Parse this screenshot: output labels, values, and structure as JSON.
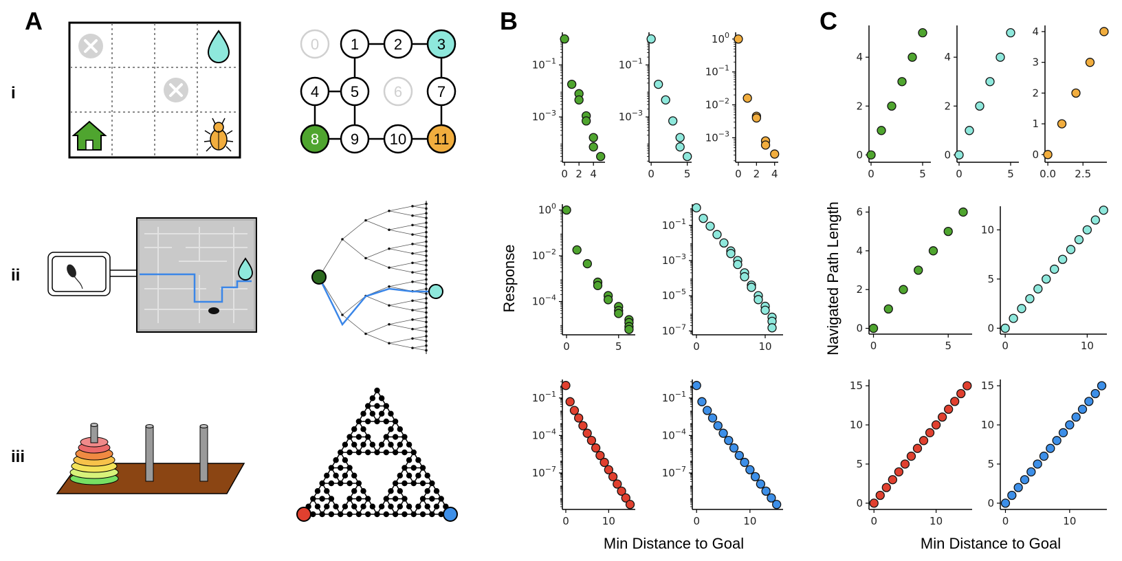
{
  "panels": {
    "A": "A",
    "B": "B",
    "C": "C"
  },
  "rows": {
    "i": "i",
    "ii": "ii",
    "iii": "iii"
  },
  "graph_nodes": [
    "0",
    "1",
    "2",
    "3",
    "4",
    "5",
    "6",
    "7",
    "8",
    "9",
    "10",
    "11"
  ],
  "colors": {
    "green": "#4fa52f",
    "cyan": "#8ee8dc",
    "orange": "#f1ad3e",
    "red": "#e0402f",
    "blue": "#3d8fe8",
    "dark_green": "#2c6a1f",
    "path_blue": "#3a86e8"
  },
  "icons": [
    "blocked-icon",
    "water-drop-icon",
    "home-icon",
    "beetle-icon",
    "mouse-icon"
  ],
  "axis_labels": {
    "B_ylabel": "Response",
    "B_xlabel": "Min Distance to Goal",
    "C_ylabel": "Navigated Path Length",
    "C_xlabel": "Min Distance to Goal"
  },
  "chart_data": [
    {
      "panel": "B",
      "row": "i",
      "col": 0,
      "type": "scatter",
      "yscale": "log",
      "color": "green",
      "x": [
        0,
        1,
        2,
        2,
        3,
        3,
        4,
        4,
        5
      ],
      "y": [
        1,
        0.018,
        0.0078,
        0.0045,
        0.0011,
        0.0007,
        0.00016,
        7e-05,
        3e-05
      ],
      "xlim": [
        -0.3,
        5.6
      ],
      "ylim": [
        1.8e-05,
        1.8
      ],
      "xticks": [
        0,
        2,
        4
      ],
      "yticks": [
        0.1,
        0.001
      ],
      "ytick_labels": [
        "10^-1",
        "10^-3"
      ]
    },
    {
      "panel": "B",
      "row": "i",
      "col": 1,
      "type": "scatter",
      "yscale": "log",
      "color": "cyan",
      "x": [
        0,
        1,
        2,
        3,
        4,
        4,
        5
      ],
      "y": [
        1,
        0.018,
        0.0045,
        0.0007,
        0.00016,
        7e-05,
        3e-05
      ],
      "xlim": [
        -0.3,
        5.6
      ],
      "ylim": [
        1.8e-05,
        1.8
      ],
      "xticks": [
        0,
        5
      ],
      "yticks": [
        0.1,
        0.001
      ],
      "ytick_labels": [
        "10^-1",
        "10^-3"
      ]
    },
    {
      "panel": "B",
      "row": "i",
      "col": 2,
      "type": "scatter",
      "yscale": "log",
      "color": "orange",
      "x": [
        0,
        1,
        2,
        2,
        3,
        3,
        4
      ],
      "y": [
        1,
        0.016,
        0.0045,
        0.004,
        0.0008,
        0.0006,
        0.00032
      ],
      "xlim": [
        -0.3,
        4.4
      ],
      "ylim": [
        0.00018,
        1.6
      ],
      "xticks": [
        0,
        2,
        4
      ],
      "yticks": [
        1,
        0.1,
        0.01,
        0.001
      ],
      "ytick_labels": [
        "10^0",
        "10^-1",
        "10^-2",
        "10^-3"
      ]
    },
    {
      "panel": "B",
      "row": "ii",
      "col": 0,
      "type": "scatter",
      "yscale": "log",
      "color": "green",
      "x": [
        0,
        1,
        2,
        3,
        3,
        4,
        4,
        5,
        5,
        5,
        6,
        6,
        6,
        6
      ],
      "y": [
        1,
        0.018,
        0.0045,
        0.0007,
        0.0005,
        0.00018,
        0.00012,
        6e-05,
        4e-05,
        3e-05,
        1.6e-05,
        1.2e-05,
        8e-06,
        6e-06
      ],
      "xlim": [
        -0.4,
        6.6
      ],
      "ylim": [
        3.5e-06,
        1.8
      ],
      "xticks": [
        0,
        5
      ],
      "yticks": [
        1,
        0.01,
        0.0001
      ],
      "ytick_labels": [
        "10^0",
        "10^-2",
        "10^-4"
      ]
    },
    {
      "panel": "B",
      "row": "ii",
      "col": 1,
      "type": "scatter",
      "yscale": "log",
      "color": "cyan",
      "x": [
        0,
        1,
        2,
        3,
        4,
        5,
        5,
        6,
        6,
        7,
        7,
        8,
        8,
        9,
        9,
        10,
        10,
        11,
        11,
        11
      ],
      "y": [
        1,
        0.25,
        0.09,
        0.03,
        0.01,
        0.0035,
        0.0025,
        0.001,
        0.0006,
        0.0002,
        0.00012,
        4e-05,
        3e-05,
        1e-05,
        6e-06,
        2.5e-06,
        1.5e-06,
        6e-07,
        3.5e-07,
        1.5e-07
      ],
      "xlim": [
        -0.6,
        12.6
      ],
      "ylim": [
        6e-08,
        1.6
      ],
      "xticks": [
        0,
        10
      ],
      "yticks": [
        0.1,
        0.001,
        1e-05,
        1e-07
      ],
      "ytick_labels": [
        "10^-1",
        "10^-3",
        "10^-5",
        "10^-7"
      ]
    },
    {
      "panel": "B",
      "row": "iii",
      "col": 0,
      "type": "scatter",
      "yscale": "log",
      "color": "red",
      "x": [
        0,
        1,
        2,
        3,
        4,
        5,
        6,
        7,
        8,
        9,
        10,
        11,
        12,
        13,
        14,
        15
      ],
      "y": [
        1,
        0.05,
        0.01,
        0.0025,
        0.0006,
        0.00015,
        4e-05,
        1e-05,
        2.5e-06,
        7e-07,
        1.8e-07,
        5e-08,
        1.3e-08,
        3.5e-09,
        1e-09,
        3e-10
      ],
      "xlim": [
        -0.8,
        16.2
      ],
      "ylim": [
        1.2e-10,
        3
      ],
      "xticks": [
        0,
        10
      ],
      "yticks": [
        0.1,
        0.0001,
        1e-07
      ],
      "ytick_labels": [
        "10^-1",
        "10^-4",
        "10^-7"
      ]
    },
    {
      "panel": "B",
      "row": "iii",
      "col": 1,
      "type": "scatter",
      "yscale": "log",
      "color": "blue",
      "x": [
        0,
        1,
        2,
        3,
        4,
        5,
        6,
        7,
        8,
        9,
        10,
        11,
        12,
        13,
        14,
        15
      ],
      "y": [
        1,
        0.05,
        0.01,
        0.0025,
        0.0006,
        0.00015,
        4e-05,
        1e-05,
        2.5e-06,
        7e-07,
        1.8e-07,
        5e-08,
        1.3e-08,
        3.5e-09,
        1e-09,
        3e-10
      ],
      "xlim": [
        -0.8,
        16.2
      ],
      "ylim": [
        1.2e-10,
        3
      ],
      "xticks": [
        0,
        10
      ],
      "yticks": [
        0.1,
        0.0001,
        1e-07
      ],
      "ytick_labels": [
        "10^-1",
        "10^-4",
        "10^-7"
      ]
    },
    {
      "panel": "C",
      "row": "i",
      "col": 0,
      "type": "scatter",
      "yscale": "linear",
      "color": "green",
      "x": [
        0,
        1,
        2,
        3,
        4,
        5
      ],
      "y": [
        0,
        1,
        2,
        3,
        4,
        5
      ],
      "xlim": [
        -0.2,
        5.8
      ],
      "ylim": [
        -0.3,
        5.3
      ],
      "xticks": [
        0,
        5
      ],
      "yticks": [
        0,
        2,
        4
      ]
    },
    {
      "panel": "C",
      "row": "i",
      "col": 1,
      "type": "scatter",
      "yscale": "linear",
      "color": "cyan",
      "x": [
        0,
        1,
        2,
        3,
        4,
        5
      ],
      "y": [
        0,
        1,
        2,
        3,
        4,
        5
      ],
      "xlim": [
        -0.2,
        5.8
      ],
      "ylim": [
        -0.3,
        5.3
      ],
      "xticks": [
        0,
        5
      ],
      "yticks": [
        0,
        2,
        4
      ]
    },
    {
      "panel": "C",
      "row": "i",
      "col": 2,
      "type": "scatter",
      "yscale": "linear",
      "color": "orange",
      "x": [
        0,
        1,
        2,
        3,
        4
      ],
      "y": [
        0,
        1,
        2,
        3,
        4
      ],
      "xlim": [
        -0.2,
        4.2
      ],
      "ylim": [
        -0.25,
        4.2
      ],
      "xticks": [
        0,
        2.5
      ],
      "xtick_labels": [
        "0.0",
        "2.5"
      ],
      "yticks": [
        0,
        1,
        2,
        3,
        4
      ]
    },
    {
      "panel": "C",
      "row": "ii",
      "col": 0,
      "type": "scatter",
      "yscale": "linear",
      "color": "green",
      "x": [
        0,
        1,
        2,
        3,
        4,
        5,
        6
      ],
      "y": [
        0,
        1,
        2,
        3,
        4,
        5,
        6
      ],
      "xlim": [
        -0.3,
        6.6
      ],
      "ylim": [
        -0.3,
        6.3
      ],
      "xticks": [
        0,
        5
      ],
      "yticks": [
        0,
        2,
        4,
        6
      ]
    },
    {
      "panel": "C",
      "row": "ii",
      "col": 1,
      "type": "scatter",
      "yscale": "linear",
      "color": "cyan",
      "x": [
        0,
        1,
        2,
        3,
        4,
        5,
        6,
        7,
        8,
        9,
        10,
        11,
        12
      ],
      "y": [
        0,
        1,
        2,
        3,
        4,
        5,
        6,
        7,
        8,
        9,
        10,
        11,
        12
      ],
      "xlim": [
        -0.6,
        12.4
      ],
      "ylim": [
        -0.6,
        12.4
      ],
      "xticks": [
        0,
        10
      ],
      "yticks": [
        0,
        5,
        10
      ]
    },
    {
      "panel": "C",
      "row": "iii",
      "col": 0,
      "type": "scatter",
      "yscale": "linear",
      "color": "red",
      "x": [
        0,
        1,
        2,
        3,
        4,
        5,
        6,
        7,
        8,
        9,
        10,
        11,
        12,
        13,
        14,
        15
      ],
      "y": [
        0,
        1,
        2,
        3,
        4,
        5,
        6,
        7,
        8,
        9,
        10,
        11,
        12,
        13,
        14,
        15
      ],
      "xlim": [
        -0.8,
        15.8
      ],
      "ylim": [
        -0.8,
        15.8
      ],
      "xticks": [
        0,
        10
      ],
      "yticks": [
        0,
        5,
        10,
        15
      ]
    },
    {
      "panel": "C",
      "row": "iii",
      "col": 1,
      "type": "scatter",
      "yscale": "linear",
      "color": "blue",
      "x": [
        0,
        1,
        2,
        3,
        4,
        5,
        6,
        7,
        8,
        9,
        10,
        11,
        12,
        13,
        14,
        15
      ],
      "y": [
        0,
        1,
        2,
        3,
        4,
        5,
        6,
        7,
        8,
        9,
        10,
        11,
        12,
        13,
        14,
        15
      ],
      "xlim": [
        -0.8,
        15.8
      ],
      "ylim": [
        -0.8,
        15.8
      ],
      "xticks": [
        0,
        10
      ],
      "yticks": [
        0,
        5,
        10,
        15
      ]
    }
  ]
}
